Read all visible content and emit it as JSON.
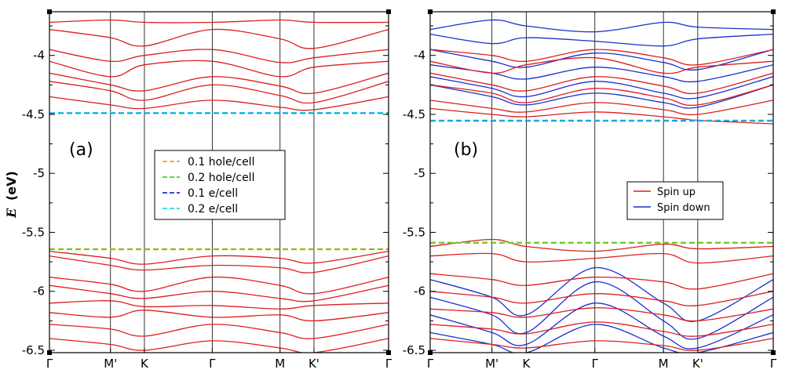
{
  "chart_data": {
    "type": "line",
    "ylabel": "E (eV)",
    "ylabel_italic_part": "E",
    "ylabel_unit_part": "(eV)",
    "ylim": [
      -6.52,
      -3.63
    ],
    "yticks": [
      -4,
      -4.5,
      -5,
      -5.5,
      -6,
      -6.5
    ],
    "ytick_labels": [
      "-4",
      "-4.5",
      "-5",
      "-5.5",
      "-6",
      "-6.5"
    ],
    "kpath": [
      "Γ",
      "M'",
      "K",
      "Γ",
      "M",
      "K'",
      "Γ"
    ],
    "kpath_positions": [
      0,
      0.18,
      0.28,
      0.48,
      0.68,
      0.78,
      1.0
    ],
    "panels": [
      {
        "id": "a",
        "label": "(a)",
        "band_color": "#dd1e1e",
        "valence_bands": [
          [
            -5.66,
            -5.72,
            -5.77,
            -5.7,
            -5.72,
            -5.76,
            -5.66
          ],
          [
            -5.7,
            -5.78,
            -5.82,
            -5.78,
            -5.8,
            -5.84,
            -5.7
          ],
          [
            -5.88,
            -5.94,
            -6.0,
            -5.88,
            -5.95,
            -6.02,
            -5.88
          ],
          [
            -5.95,
            -6.02,
            -6.06,
            -6.0,
            -6.06,
            -6.08,
            -5.95
          ],
          [
            -6.1,
            -6.08,
            -6.13,
            -6.12,
            -6.15,
            -6.12,
            -6.1
          ],
          [
            -6.18,
            -6.22,
            -6.16,
            -6.22,
            -6.2,
            -6.25,
            -6.18
          ],
          [
            -6.28,
            -6.32,
            -6.38,
            -6.28,
            -6.35,
            -6.4,
            -6.28
          ],
          [
            -6.4,
            -6.45,
            -6.5,
            -6.42,
            -6.48,
            -6.52,
            -6.4
          ]
        ],
        "conduction_bands": [
          [
            -3.72,
            -3.7,
            -3.72,
            -3.72,
            -3.7,
            -3.72,
            -3.72
          ],
          [
            -3.78,
            -3.85,
            -3.92,
            -3.78,
            -3.86,
            -3.94,
            -3.78
          ],
          [
            -3.95,
            -4.05,
            -4.0,
            -3.95,
            -4.06,
            -4.02,
            -3.95
          ],
          [
            -4.05,
            -4.18,
            -4.08,
            -4.05,
            -4.18,
            -4.1,
            -4.05
          ],
          [
            -4.15,
            -4.25,
            -4.3,
            -4.18,
            -4.26,
            -4.32,
            -4.15
          ],
          [
            -4.22,
            -4.3,
            -4.38,
            -4.25,
            -4.34,
            -4.4,
            -4.22
          ],
          [
            -4.35,
            -4.42,
            -4.45,
            -4.38,
            -4.44,
            -4.46,
            -4.35
          ]
        ],
        "reference_lines": [
          {
            "name": "0.1 hole/cell",
            "y": -5.64,
            "color": "#f5a623"
          },
          {
            "name": "0.2 hole/cell",
            "y": -5.645,
            "color": "#33dd22"
          },
          {
            "name": "0.1 e/cell",
            "y": -4.49,
            "color": "#1a2fcf"
          },
          {
            "name": "0.2 e/cell",
            "y": -4.485,
            "color": "#22d8e6"
          }
        ]
      },
      {
        "id": "b",
        "label": "(b)",
        "series": [
          {
            "name": "Spin up",
            "color": "#dd1e1e"
          },
          {
            "name": "Spin down",
            "color": "#1a2fcf"
          }
        ],
        "spin_up_conduction": [
          [
            -3.95,
            -4.0,
            -4.05,
            -3.95,
            -4.02,
            -4.08,
            -3.95
          ],
          [
            -4.05,
            -4.15,
            -4.08,
            -4.02,
            -4.15,
            -4.1,
            -4.05
          ],
          [
            -4.15,
            -4.25,
            -4.3,
            -4.18,
            -4.26,
            -4.32,
            -4.15
          ],
          [
            -4.25,
            -4.32,
            -4.4,
            -4.28,
            -4.36,
            -4.42,
            -4.25
          ],
          [
            -4.38,
            -4.45,
            -4.48,
            -4.4,
            -4.46,
            -4.5,
            -4.38
          ],
          [
            -4.45,
            -4.5,
            -4.52,
            -4.48,
            -4.52,
            -4.55,
            -4.58
          ]
        ],
        "spin_down_conduction": [
          [
            -3.78,
            -3.7,
            -3.75,
            -3.8,
            -3.72,
            -3.76,
            -3.78
          ],
          [
            -3.82,
            -3.9,
            -3.85,
            -3.88,
            -3.92,
            -3.86,
            -3.82
          ],
          [
            -3.95,
            -4.05,
            -4.1,
            -3.98,
            -4.06,
            -4.12,
            -3.95
          ],
          [
            -4.08,
            -4.15,
            -4.2,
            -4.1,
            -4.18,
            -4.22,
            -4.08
          ],
          [
            -4.18,
            -4.28,
            -4.35,
            -4.22,
            -4.32,
            -4.36,
            -4.18
          ],
          [
            -4.25,
            -4.35,
            -4.42,
            -4.32,
            -4.4,
            -4.44,
            -4.25
          ]
        ],
        "spin_up_valence": [
          [
            -5.62,
            -5.56,
            -5.62,
            -5.66,
            -5.6,
            -5.64,
            -5.62
          ],
          [
            -5.7,
            -5.68,
            -5.75,
            -5.72,
            -5.68,
            -5.76,
            -5.7
          ],
          [
            -5.85,
            -5.9,
            -5.95,
            -5.88,
            -5.92,
            -5.98,
            -5.85
          ],
          [
            -6.0,
            -6.05,
            -6.1,
            -6.02,
            -6.08,
            -6.12,
            -6.0
          ],
          [
            -6.15,
            -6.18,
            -6.22,
            -6.14,
            -6.2,
            -6.25,
            -6.15
          ],
          [
            -6.28,
            -6.32,
            -6.36,
            -6.26,
            -6.34,
            -6.38,
            -6.28
          ],
          [
            -6.4,
            -6.45,
            -6.48,
            -6.42,
            -6.46,
            -6.5,
            -6.4
          ]
        ],
        "spin_down_valence": [
          [
            -5.9,
            -6.05,
            -6.2,
            -5.8,
            -6.1,
            -6.25,
            -5.9
          ],
          [
            -6.05,
            -6.2,
            -6.35,
            -5.92,
            -6.25,
            -6.4,
            -6.05
          ],
          [
            -6.2,
            -6.35,
            -6.45,
            -6.1,
            -6.38,
            -6.48,
            -6.2
          ],
          [
            -6.35,
            -6.45,
            -6.52,
            -6.28,
            -6.48,
            -6.52,
            -6.35
          ]
        ],
        "reference_lines": [
          {
            "name": "0.1 hole/cell",
            "y": -5.585,
            "color": "#f5a623"
          },
          {
            "name": "0.2 hole/cell",
            "y": -5.59,
            "color": "#33dd22"
          },
          {
            "name": "0.1 e/cell",
            "y": -4.555,
            "color": "#1a2fcf"
          },
          {
            "name": "0.2 e/cell",
            "y": -4.55,
            "color": "#22d8e6"
          }
        ]
      }
    ],
    "legend_a_placement": "center",
    "legend_b_placement": "center-right",
    "grid": false
  }
}
